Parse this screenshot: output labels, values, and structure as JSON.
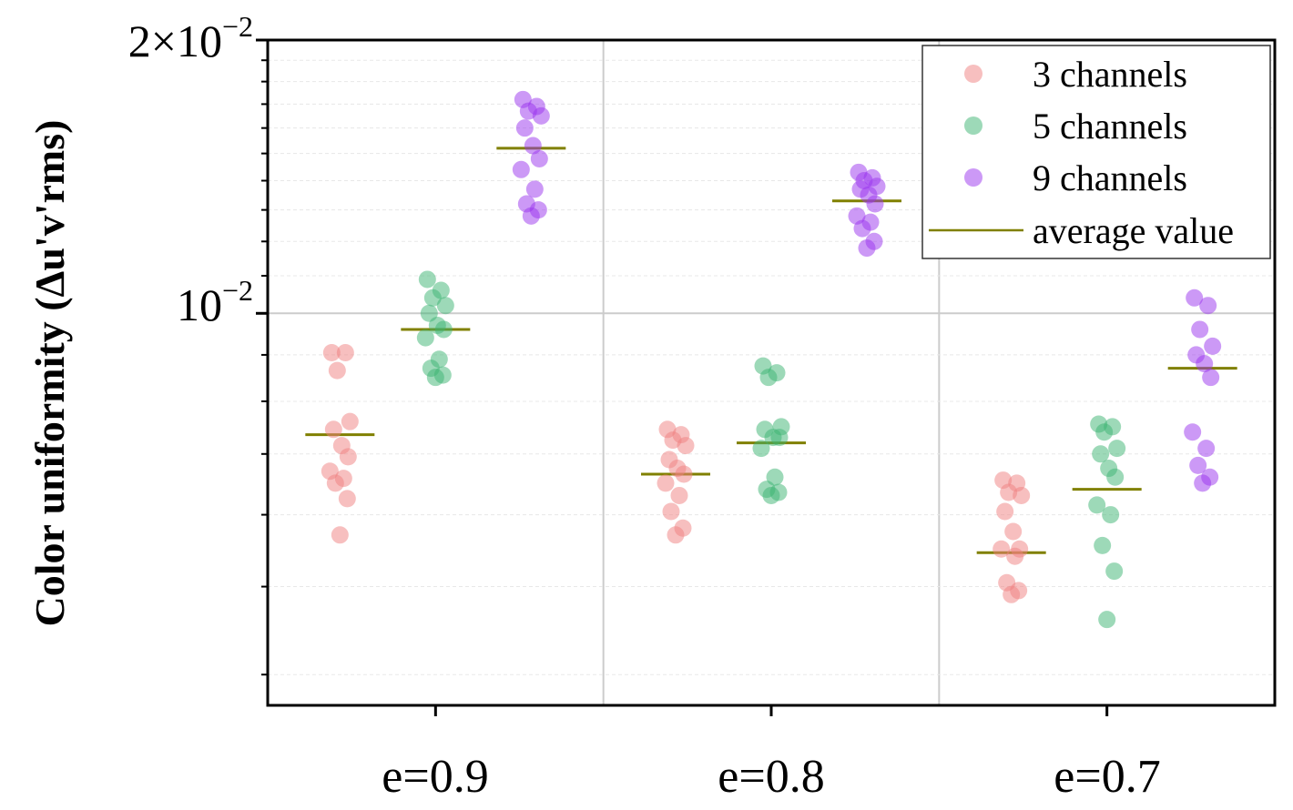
{
  "chart_data": {
    "type": "scatter",
    "title": "",
    "xlabel": "",
    "ylabel": "Color uniformity (Δu'v'rms)",
    "yscale": "log",
    "ylim": [
      0.0037,
      0.02
    ],
    "y_ticks": [
      {
        "value": 0.01,
        "base": "10",
        "exp": "−2",
        "mantissa": ""
      },
      {
        "value": 0.02,
        "base": "10",
        "exp": "−2",
        "mantissa": "2×"
      }
    ],
    "categories": [
      "e=0.9",
      "e=0.8",
      "e=0.7"
    ],
    "series": [
      {
        "name": "3 channels",
        "color": "#f08080",
        "points": [
          [
            0.00905,
            0.00905,
            0.00865,
            0.0076,
            0.00745,
            0.00715,
            0.00695,
            0.0067,
            0.00658,
            0.0065,
            0.00625,
            0.0057
          ],
          [
            0.00745,
            0.00735,
            0.00725,
            0.00715,
            0.0069,
            0.00675,
            0.00665,
            0.0065,
            0.0063,
            0.00605,
            0.0058,
            0.0057
          ],
          [
            0.00655,
            0.0065,
            0.00635,
            0.0063,
            0.00605,
            0.00575,
            0.0055,
            0.0055,
            0.0054,
            0.00505,
            0.00495,
            0.0049
          ]
        ],
        "average": [
          0.00735,
          0.00665,
          0.00545
        ]
      },
      {
        "name": "5 channels",
        "color": "#3cb371",
        "points": [
          [
            0.0109,
            0.0106,
            0.0104,
            0.0102,
            0.01,
            0.0097,
            0.0096,
            0.0094,
            0.0089,
            0.0087,
            0.00855,
            0.0085
          ],
          [
            0.00875,
            0.0086,
            0.0085,
            0.0075,
            0.00745,
            0.0073,
            0.0073,
            0.0071,
            0.0066,
            0.0064,
            0.00635,
            0.0063
          ],
          [
            0.00755,
            0.0075,
            0.0074,
            0.0071,
            0.007,
            0.00675,
            0.0066,
            0.00615,
            0.006,
            0.00555,
            0.0052,
            0.0046
          ]
        ],
        "average": [
          0.0096,
          0.0072,
          0.0064
        ]
      },
      {
        "name": "9 channels",
        "color": "#9933ee",
        "points": [
          [
            0.0172,
            0.0169,
            0.0167,
            0.0165,
            0.016,
            0.0153,
            0.0148,
            0.0144,
            0.0137,
            0.0132,
            0.013,
            0.0128
          ],
          [
            0.0143,
            0.0141,
            0.014,
            0.0138,
            0.0137,
            0.0135,
            0.0132,
            0.0128,
            0.0126,
            0.0124,
            0.012,
            0.0118
          ],
          [
            0.0104,
            0.0102,
            0.0096,
            0.0092,
            0.009,
            0.0088,
            0.0085,
            0.0074,
            0.0071,
            0.0068,
            0.0066,
            0.0065
          ]
        ],
        "average": [
          0.0152,
          0.0133,
          0.0087
        ]
      }
    ],
    "average_line": {
      "name": "average value",
      "color": "#808000"
    },
    "legend_position": "top-right",
    "grid": true
  }
}
